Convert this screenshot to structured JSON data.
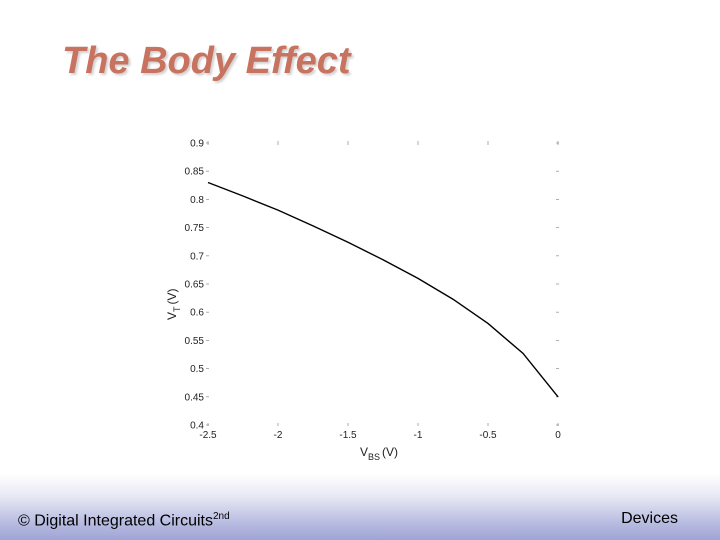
{
  "slide": {
    "title": "The Body Effect",
    "colors": {
      "title": "#c8735f",
      "footer_band": "#9fa4d6"
    }
  },
  "footer": {
    "copyright": "©",
    "course": "Digital Integrated Circuits",
    "edition": "2nd",
    "section": "Devices"
  },
  "chart_data": {
    "type": "line",
    "title": "",
    "xlabel_main": "V",
    "xlabel_sub": "BS",
    "xlabel_unit": "(V)",
    "ylabel_main": "V",
    "ylabel_sub": "T",
    "ylabel_unit": "(V)",
    "xlim": [
      -2.5,
      0
    ],
    "ylim": [
      0.4,
      0.9
    ],
    "xticks": [
      "-2.5",
      "-2",
      "-1.5",
      "-1",
      "-0.5",
      "0"
    ],
    "yticks": [
      "0.4",
      "0.45",
      "0.5",
      "0.55",
      "0.6",
      "0.65",
      "0.7",
      "0.75",
      "0.8",
      "0.85",
      "0.9"
    ],
    "grid": false,
    "series": [
      {
        "x": [
          -2.5,
          -2.25,
          -2.0,
          -1.75,
          -1.5,
          -1.25,
          -1.0,
          -0.75,
          -0.5,
          -0.25,
          0.0
        ],
        "y": [
          0.83,
          0.806,
          0.781,
          0.753,
          0.724,
          0.693,
          0.66,
          0.623,
          0.58,
          0.527,
          0.45
        ]
      }
    ]
  }
}
